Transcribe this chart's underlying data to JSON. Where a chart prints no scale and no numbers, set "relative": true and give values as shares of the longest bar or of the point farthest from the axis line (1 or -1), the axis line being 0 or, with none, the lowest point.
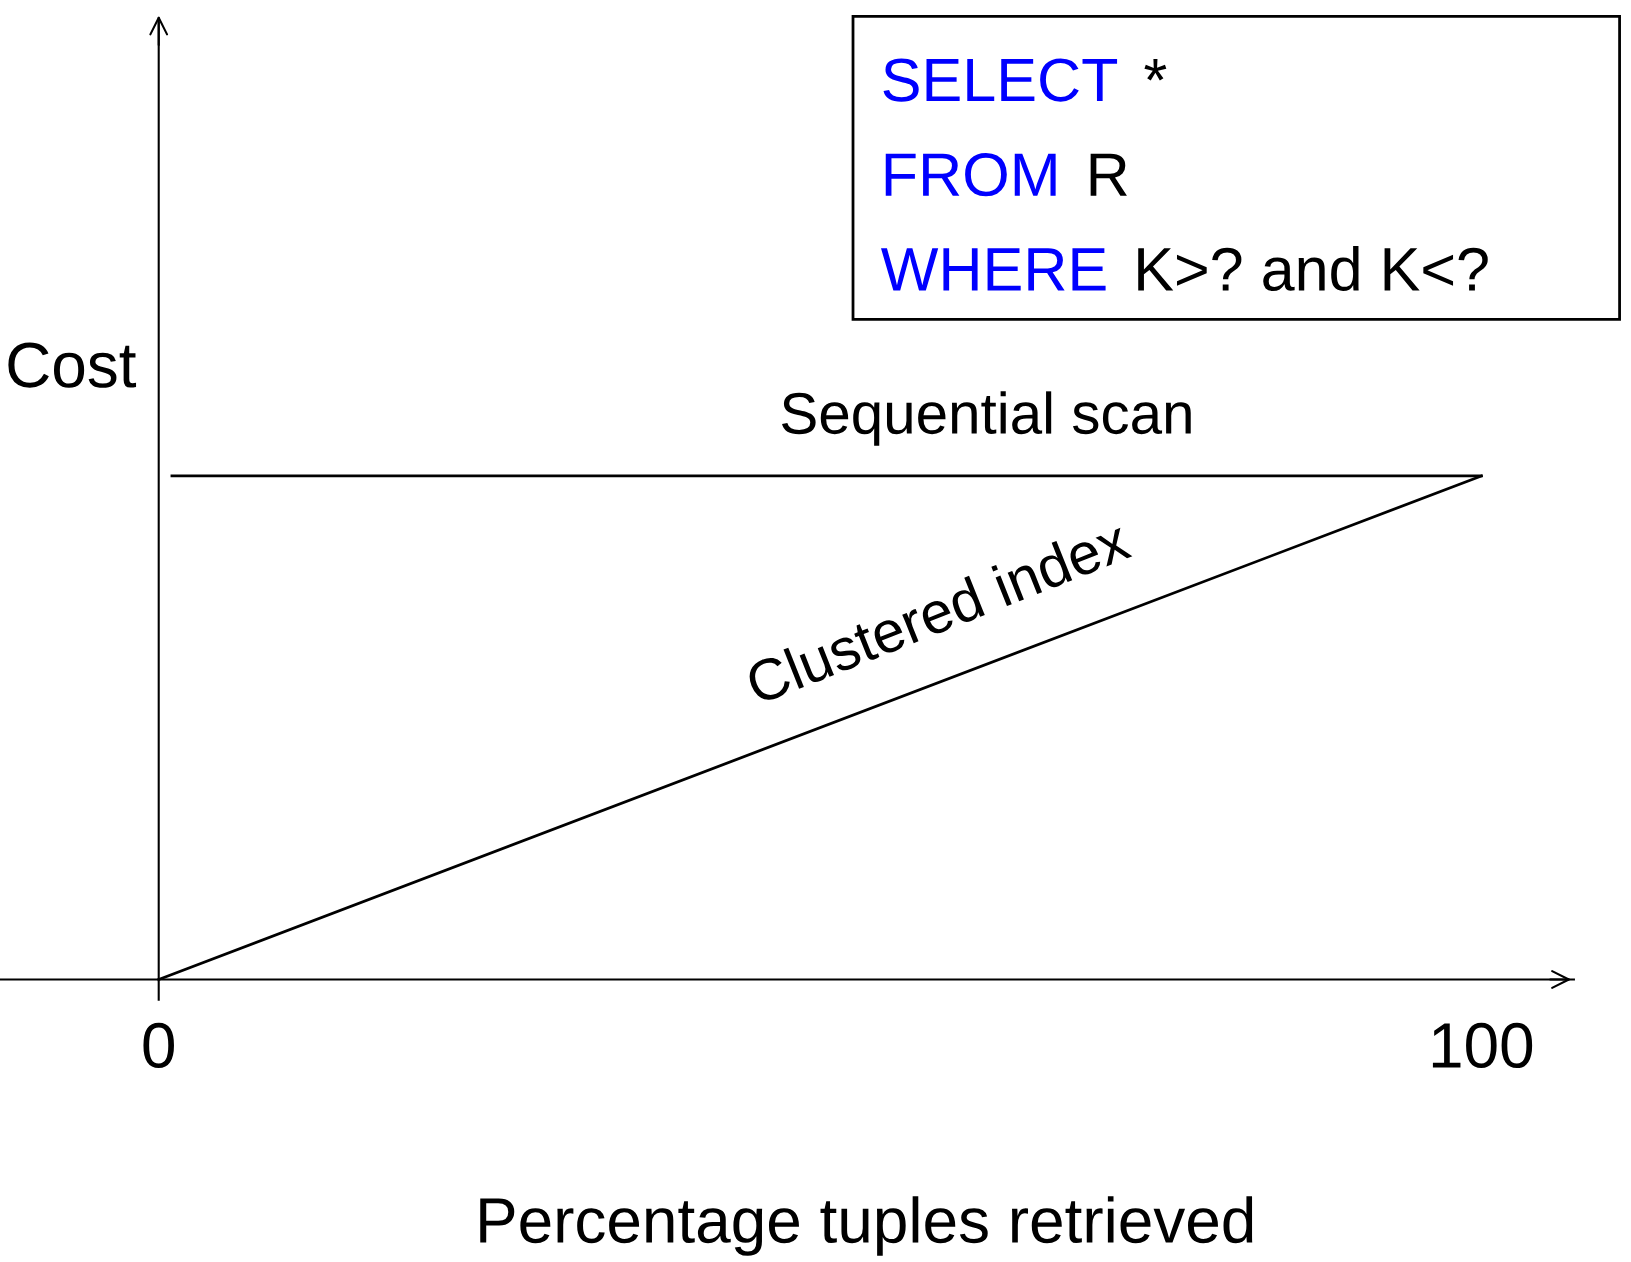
{
  "chart_data": {
    "type": "line",
    "relative": true,
    "xlabel": "Percentage tuples retrieved",
    "ylabel": "Cost",
    "xlim": [
      -12,
      107
    ],
    "xticks": [
      0,
      100
    ],
    "series": [
      {
        "name": "Sequential scan",
        "color": "#000000",
        "x": [
          1,
          100
        ],
        "values": [
          1,
          1
        ]
      },
      {
        "name": "Clustered index",
        "color": "#000000",
        "x": [
          0,
          100
        ],
        "values": [
          0,
          1
        ]
      }
    ],
    "annotations": [
      "SELECT",
      "*",
      "FROM",
      "R",
      "WHERE",
      "K>? and K<?"
    ],
    "grid": false,
    "legend": false,
    "marker": "none",
    "line_style": "solid"
  }
}
